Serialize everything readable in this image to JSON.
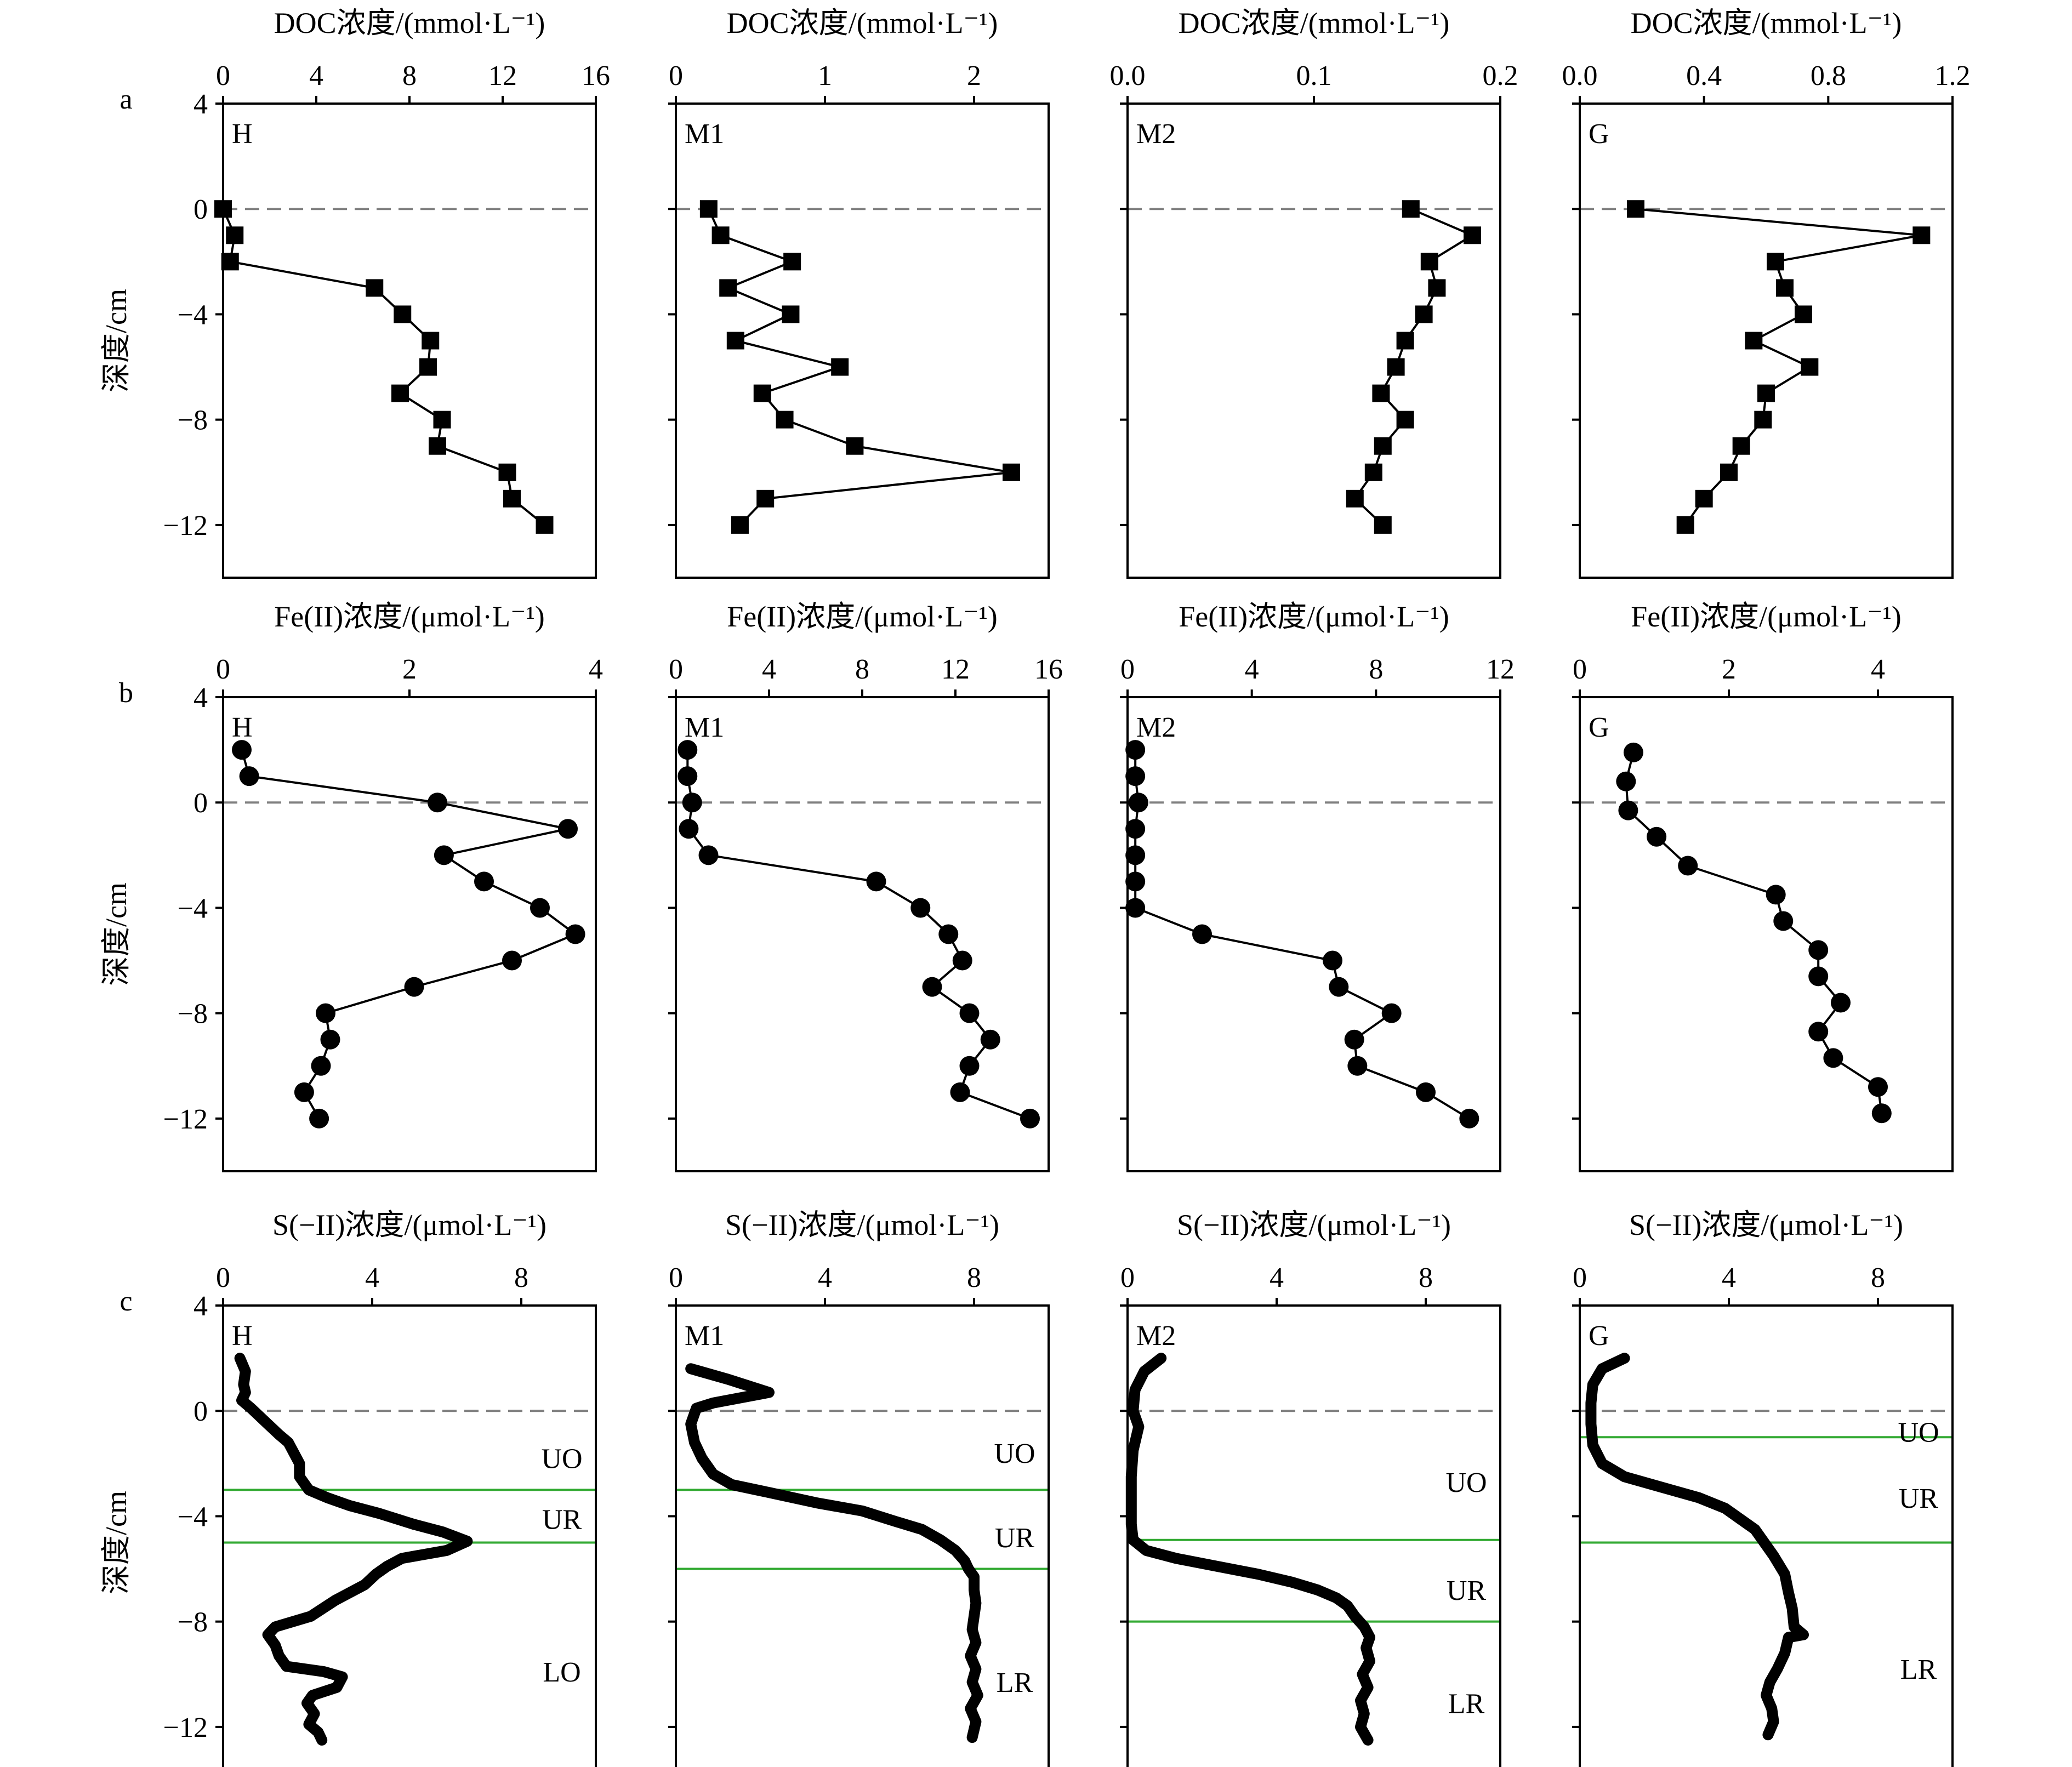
{
  "figure": {
    "row_letters": [
      "a",
      "b",
      "c"
    ],
    "depth_axis_label": "深度/cm",
    "depth_ticks": [
      4,
      0,
      -4,
      -8,
      -12
    ],
    "zone_color": "#33aa33",
    "line_color": "#000000",
    "dashed_color": "#808080"
  },
  "chart_data": [
    {
      "type": "line",
      "row": 0,
      "col": 0,
      "panel_label": "H",
      "title": "DOC浓度/(mmol·L⁻¹)",
      "marker": "square",
      "xlim": [
        0,
        16
      ],
      "xticks": [
        "0",
        "4",
        "8",
        "12",
        "16"
      ],
      "ylim": [
        -14,
        4
      ],
      "points": [
        [
          0,
          0
        ],
        [
          0.5,
          -1
        ],
        [
          0.3,
          -2
        ],
        [
          6.5,
          -3
        ],
        [
          7.7,
          -4
        ],
        [
          8.9,
          -5
        ],
        [
          8.8,
          -6
        ],
        [
          7.6,
          -7
        ],
        [
          9.4,
          -8
        ],
        [
          9.2,
          -9
        ],
        [
          12.2,
          -10
        ],
        [
          12.4,
          -11
        ],
        [
          13.8,
          -12
        ]
      ]
    },
    {
      "type": "line",
      "row": 0,
      "col": 1,
      "panel_label": "M1",
      "title": "DOC浓度/(mmol·L⁻¹)",
      "marker": "square",
      "xlim": [
        0,
        2.5
      ],
      "xticks": [
        "0",
        "1",
        "2"
      ],
      "ylim": [
        -14,
        4
      ],
      "points": [
        [
          0.22,
          0
        ],
        [
          0.3,
          -1
        ],
        [
          0.78,
          -2
        ],
        [
          0.35,
          -3
        ],
        [
          0.77,
          -4
        ],
        [
          0.4,
          -5
        ],
        [
          1.1,
          -6
        ],
        [
          0.58,
          -7
        ],
        [
          0.73,
          -8
        ],
        [
          1.2,
          -9
        ],
        [
          2.25,
          -10
        ],
        [
          0.6,
          -11
        ],
        [
          0.43,
          -12
        ]
      ]
    },
    {
      "type": "line",
      "row": 0,
      "col": 2,
      "panel_label": "M2",
      "title": "DOC浓度/(mmol·L⁻¹)",
      "marker": "square",
      "xlim": [
        0,
        0.2
      ],
      "xticks": [
        "0.0",
        "0.1",
        "0.2"
      ],
      "ylim": [
        -14,
        4
      ],
      "points": [
        [
          0.152,
          0
        ],
        [
          0.185,
          -1
        ],
        [
          0.162,
          -2
        ],
        [
          0.166,
          -3
        ],
        [
          0.159,
          -4
        ],
        [
          0.149,
          -5
        ],
        [
          0.144,
          -6
        ],
        [
          0.136,
          -7
        ],
        [
          0.149,
          -8
        ],
        [
          0.137,
          -9
        ],
        [
          0.132,
          -10
        ],
        [
          0.122,
          -11
        ],
        [
          0.137,
          -12
        ]
      ]
    },
    {
      "type": "line",
      "row": 0,
      "col": 3,
      "panel_label": "G",
      "title": "DOC浓度/(mmol·L⁻¹)",
      "marker": "square",
      "xlim": [
        0,
        1.2
      ],
      "xticks": [
        "0.0",
        "0.4",
        "0.8",
        "1.2"
      ],
      "ylim": [
        -14,
        4
      ],
      "points": [
        [
          0.18,
          0
        ],
        [
          1.1,
          -1
        ],
        [
          0.63,
          -2
        ],
        [
          0.66,
          -3
        ],
        [
          0.72,
          -4
        ],
        [
          0.56,
          -5
        ],
        [
          0.74,
          -6
        ],
        [
          0.6,
          -7
        ],
        [
          0.59,
          -8
        ],
        [
          0.52,
          -9
        ],
        [
          0.48,
          -10
        ],
        [
          0.4,
          -11
        ],
        [
          0.34,
          -12
        ]
      ]
    },
    {
      "type": "line",
      "row": 1,
      "col": 0,
      "panel_label": "H",
      "title": "Fe(II)浓度/(μmol·L⁻¹)",
      "marker": "circle",
      "xlim": [
        0,
        4
      ],
      "xticks": [
        "0",
        "2",
        "4"
      ],
      "ylim": [
        -14,
        4
      ],
      "points": [
        [
          0.2,
          2
        ],
        [
          0.28,
          1
        ],
        [
          2.3,
          0
        ],
        [
          3.7,
          -1
        ],
        [
          2.37,
          -2
        ],
        [
          2.8,
          -3
        ],
        [
          3.4,
          -4
        ],
        [
          3.78,
          -5
        ],
        [
          3.1,
          -6
        ],
        [
          2.05,
          -7
        ],
        [
          1.1,
          -8
        ],
        [
          1.15,
          -9
        ],
        [
          1.05,
          -10
        ],
        [
          0.87,
          -11
        ],
        [
          1.03,
          -12
        ]
      ]
    },
    {
      "type": "line",
      "row": 1,
      "col": 1,
      "panel_label": "M1",
      "title": "Fe(II)浓度/(μmol·L⁻¹)",
      "marker": "circle",
      "xlim": [
        0,
        16
      ],
      "xticks": [
        "0",
        "4",
        "8",
        "12",
        "16"
      ],
      "ylim": [
        -14,
        4
      ],
      "points": [
        [
          0.5,
          2
        ],
        [
          0.5,
          1
        ],
        [
          0.7,
          0
        ],
        [
          0.55,
          -1
        ],
        [
          1.4,
          -2
        ],
        [
          8.6,
          -3
        ],
        [
          10.5,
          -4
        ],
        [
          11.7,
          -5
        ],
        [
          12.3,
          -6
        ],
        [
          11.0,
          -7
        ],
        [
          12.6,
          -8
        ],
        [
          13.5,
          -9
        ],
        [
          12.6,
          -10
        ],
        [
          12.2,
          -11
        ],
        [
          15.2,
          -12
        ]
      ]
    },
    {
      "type": "line",
      "row": 1,
      "col": 2,
      "panel_label": "M2",
      "title": "Fe(II)浓度/(μmol·L⁻¹)",
      "marker": "circle",
      "xlim": [
        0,
        12
      ],
      "xticks": [
        "0",
        "4",
        "8",
        "12"
      ],
      "ylim": [
        -14,
        4
      ],
      "points": [
        [
          0.25,
          2
        ],
        [
          0.25,
          1
        ],
        [
          0.35,
          0
        ],
        [
          0.25,
          -1
        ],
        [
          0.25,
          -2
        ],
        [
          0.25,
          -3
        ],
        [
          0.25,
          -4
        ],
        [
          2.4,
          -5
        ],
        [
          6.6,
          -6
        ],
        [
          6.8,
          -7
        ],
        [
          8.5,
          -8
        ],
        [
          7.3,
          -9
        ],
        [
          7.4,
          -10
        ],
        [
          9.6,
          -11
        ],
        [
          11.0,
          -12
        ]
      ]
    },
    {
      "type": "line",
      "row": 1,
      "col": 3,
      "panel_label": "G",
      "title": "Fe(II)浓度/(μmol·L⁻¹)",
      "marker": "circle",
      "xlim": [
        0,
        5
      ],
      "xticks": [
        "0",
        "2",
        "4"
      ],
      "ylim": [
        -14,
        4
      ],
      "points": [
        [
          0.72,
          1.9
        ],
        [
          0.62,
          0.8
        ],
        [
          0.65,
          -0.3
        ],
        [
          1.03,
          -1.3
        ],
        [
          1.45,
          -2.4
        ],
        [
          2.63,
          -3.5
        ],
        [
          2.73,
          -4.5
        ],
        [
          3.2,
          -5.6
        ],
        [
          3.2,
          -6.6
        ],
        [
          3.5,
          -7.6
        ],
        [
          3.2,
          -8.7
        ],
        [
          3.4,
          -9.7
        ],
        [
          4.0,
          -10.8
        ],
        [
          4.05,
          -11.8
        ]
      ]
    },
    {
      "type": "line",
      "row": 2,
      "col": 0,
      "panel_label": "H",
      "title": "S(−II)浓度/(μmol·L⁻¹)",
      "marker": "none",
      "xlim": [
        0,
        10
      ],
      "xticks": [
        "0",
        "4",
        "8"
      ],
      "ylim": [
        -14,
        4
      ],
      "zone_lines": [
        -3,
        -5
      ],
      "zone_labels": [
        {
          "text": "UO",
          "y": -1.8
        },
        {
          "text": "UR",
          "y": -4.1
        },
        {
          "text": "LO",
          "y": -9.9
        }
      ],
      "points": [
        [
          0.45,
          2
        ],
        [
          0.6,
          1.5
        ],
        [
          0.55,
          1
        ],
        [
          0.6,
          0.7
        ],
        [
          0.5,
          0.4
        ],
        [
          0.75,
          0.1
        ],
        [
          1.2,
          -0.5
        ],
        [
          1.5,
          -0.9
        ],
        [
          1.75,
          -1.2
        ],
        [
          1.9,
          -1.6
        ],
        [
          2.05,
          -2.0
        ],
        [
          2.05,
          -2.5
        ],
        [
          2.3,
          -3.0
        ],
        [
          2.8,
          -3.3
        ],
        [
          3.4,
          -3.6
        ],
        [
          4.2,
          -3.9
        ],
        [
          5.1,
          -4.3
        ],
        [
          5.9,
          -4.6
        ],
        [
          6.55,
          -4.95
        ],
        [
          6.0,
          -5.3
        ],
        [
          4.8,
          -5.6
        ],
        [
          4.4,
          -5.9
        ],
        [
          4.1,
          -6.2
        ],
        [
          3.8,
          -6.6
        ],
        [
          3.0,
          -7.2
        ],
        [
          2.35,
          -7.8
        ],
        [
          1.4,
          -8.2
        ],
        [
          1.2,
          -8.5
        ],
        [
          1.4,
          -8.9
        ],
        [
          1.5,
          -9.3
        ],
        [
          1.7,
          -9.7
        ],
        [
          2.7,
          -9.9
        ],
        [
          3.2,
          -10.1
        ],
        [
          3.05,
          -10.5
        ],
        [
          2.4,
          -10.8
        ],
        [
          2.25,
          -11.1
        ],
        [
          2.45,
          -11.5
        ],
        [
          2.3,
          -11.9
        ],
        [
          2.55,
          -12.2
        ],
        [
          2.65,
          -12.5
        ]
      ]
    },
    {
      "type": "line",
      "row": 2,
      "col": 1,
      "panel_label": "M1",
      "title": "S(−II)浓度/(μmol·L⁻¹)",
      "marker": "none",
      "xlim": [
        0,
        10
      ],
      "xticks": [
        "0",
        "4",
        "8"
      ],
      "ylim": [
        -14,
        4
      ],
      "zone_lines": [
        -3,
        -6
      ],
      "zone_labels": [
        {
          "text": "UO",
          "y": -1.6
        },
        {
          "text": "UR",
          "y": -4.8
        },
        {
          "text": "LR",
          "y": -10.3
        }
      ],
      "points": [
        [
          0.4,
          1.6
        ],
        [
          1.4,
          1.2
        ],
        [
          2.5,
          0.7
        ],
        [
          1.0,
          0.3
        ],
        [
          0.55,
          0.1
        ],
        [
          0.4,
          -0.5
        ],
        [
          0.5,
          -1.2
        ],
        [
          0.7,
          -1.8
        ],
        [
          1.0,
          -2.4
        ],
        [
          1.5,
          -2.8
        ],
        [
          2.5,
          -3.1
        ],
        [
          3.8,
          -3.5
        ],
        [
          5.0,
          -3.8
        ],
        [
          5.9,
          -4.2
        ],
        [
          6.6,
          -4.5
        ],
        [
          7.1,
          -4.9
        ],
        [
          7.5,
          -5.3
        ],
        [
          7.75,
          -5.7
        ],
        [
          7.85,
          -6.0
        ],
        [
          8.0,
          -6.3
        ],
        [
          8.0,
          -6.8
        ],
        [
          8.05,
          -7.3
        ],
        [
          8.0,
          -7.8
        ],
        [
          7.95,
          -8.3
        ],
        [
          8.05,
          -8.8
        ],
        [
          7.9,
          -9.3
        ],
        [
          8.05,
          -9.8
        ],
        [
          7.95,
          -10.3
        ],
        [
          8.1,
          -10.8
        ],
        [
          7.9,
          -11.3
        ],
        [
          8.05,
          -11.8
        ],
        [
          7.95,
          -12.4
        ]
      ]
    },
    {
      "type": "line",
      "row": 2,
      "col": 2,
      "panel_label": "M2",
      "title": "S(−II)浓度/(μmol·L⁻¹)",
      "marker": "none",
      "xlim": [
        0,
        10
      ],
      "xticks": [
        "0",
        "4",
        "8"
      ],
      "ylim": [
        -14,
        4
      ],
      "zone_lines": [
        -4.9,
        -8
      ],
      "zone_labels": [
        {
          "text": "UO",
          "y": -2.7
        },
        {
          "text": "UR",
          "y": -6.8
        },
        {
          "text": "LR",
          "y": -11.1
        }
      ],
      "points": [
        [
          0.9,
          2
        ],
        [
          0.45,
          1.5
        ],
        [
          0.2,
          0.8
        ],
        [
          0.15,
          0
        ],
        [
          0.3,
          -0.6
        ],
        [
          0.15,
          -1.5
        ],
        [
          0.1,
          -2.5
        ],
        [
          0.1,
          -3.5
        ],
        [
          0.1,
          -4.3
        ],
        [
          0.15,
          -4.9
        ],
        [
          0.5,
          -5.3
        ],
        [
          1.3,
          -5.6
        ],
        [
          2.4,
          -5.9
        ],
        [
          3.5,
          -6.2
        ],
        [
          4.4,
          -6.5
        ],
        [
          5.1,
          -6.8
        ],
        [
          5.6,
          -7.1
        ],
        [
          5.9,
          -7.4
        ],
        [
          6.1,
          -7.8
        ],
        [
          6.35,
          -8.2
        ],
        [
          6.5,
          -8.6
        ],
        [
          6.4,
          -9.0
        ],
        [
          6.5,
          -9.5
        ],
        [
          6.3,
          -10.0
        ],
        [
          6.45,
          -10.5
        ],
        [
          6.25,
          -11.0
        ],
        [
          6.35,
          -11.5
        ],
        [
          6.25,
          -12.0
        ],
        [
          6.45,
          -12.5
        ]
      ]
    },
    {
      "type": "line",
      "row": 2,
      "col": 3,
      "panel_label": "G",
      "title": "S(−II)浓度/(μmol·L⁻¹)",
      "marker": "none",
      "xlim": [
        0,
        10
      ],
      "xticks": [
        "0",
        "4",
        "8"
      ],
      "ylim": [
        -14,
        4
      ],
      "zone_lines": [
        -1,
        -5
      ],
      "zone_labels": [
        {
          "text": "UO",
          "y": -0.8
        },
        {
          "text": "UR",
          "y": -3.3
        },
        {
          "text": "LR",
          "y": -9.8
        }
      ],
      "points": [
        [
          1.2,
          2
        ],
        [
          0.6,
          1.6
        ],
        [
          0.35,
          1
        ],
        [
          0.3,
          0.3
        ],
        [
          0.3,
          -0.5
        ],
        [
          0.35,
          -1.3
        ],
        [
          0.6,
          -2.0
        ],
        [
          1.2,
          -2.5
        ],
        [
          2.2,
          -2.9
        ],
        [
          3.2,
          -3.3
        ],
        [
          3.9,
          -3.7
        ],
        [
          4.3,
          -4.1
        ],
        [
          4.7,
          -4.5
        ],
        [
          4.95,
          -5.0
        ],
        [
          5.2,
          -5.5
        ],
        [
          5.5,
          -6.2
        ],
        [
          5.6,
          -6.9
        ],
        [
          5.7,
          -7.5
        ],
        [
          5.75,
          -8.2
        ],
        [
          6.0,
          -8.5
        ],
        [
          5.6,
          -8.6
        ],
        [
          5.5,
          -9.2
        ],
        [
          5.3,
          -9.8
        ],
        [
          5.1,
          -10.3
        ],
        [
          5.0,
          -10.8
        ],
        [
          5.15,
          -11.3
        ],
        [
          5.2,
          -11.8
        ],
        [
          5.05,
          -12.3
        ]
      ]
    }
  ]
}
